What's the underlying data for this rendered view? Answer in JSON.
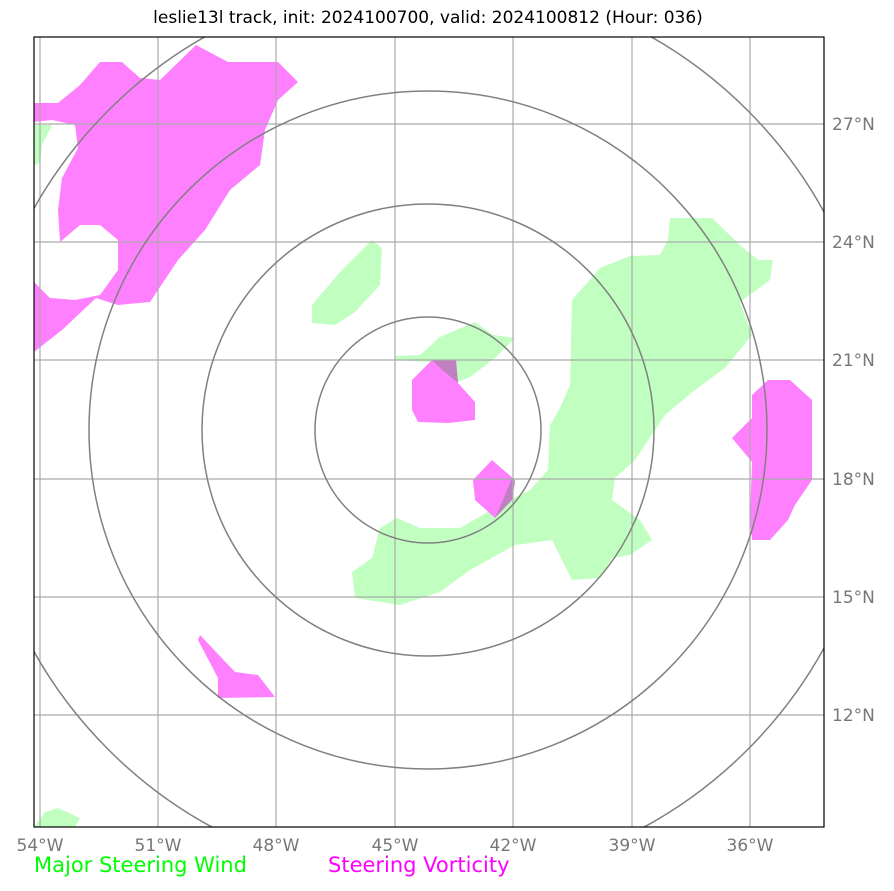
{
  "title": "leslie13l track, init: 2024100700, valid: 2024100812 (Hour: 036)",
  "map": {
    "lon_ticks": [
      "54°W",
      "51°W",
      "48°W",
      "45°W",
      "42°W",
      "39°W",
      "36°W"
    ],
    "lat_ticks": [
      "27°N",
      "24°N",
      "21°N",
      "18°N",
      "15°N",
      "12°N"
    ],
    "range_rings_count": 4,
    "gridline_color": "#aaaaaa",
    "ring_color": "#808080"
  },
  "legend": {
    "wind_label": "Major Steering Wind",
    "wind_color": "#00ff00",
    "vorticity_label": "Steering Vorticity",
    "vorticity_color": "#ff00ff"
  }
}
